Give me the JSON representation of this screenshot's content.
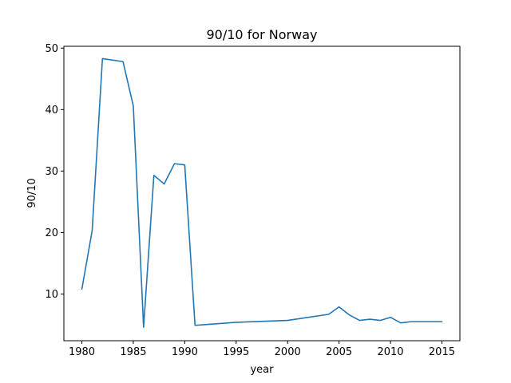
{
  "chart_data": {
    "type": "line",
    "title": "90/10 for Norway",
    "xlabel": "year",
    "ylabel": "90/10",
    "xlim": [
      1978.25,
      2016.75
    ],
    "ylim": [
      2.4,
      50.3
    ],
    "xticks": [
      1980,
      1985,
      1990,
      1995,
      2000,
      2005,
      2010,
      2015
    ],
    "yticks": [
      10,
      20,
      30,
      40,
      50
    ],
    "grid": false,
    "series": [
      {
        "color": "#1f77b4",
        "x": [
          1980,
          1981,
          1982,
          1984,
          1985,
          1986,
          1987,
          1988,
          1989,
          1990,
          1991,
          1995,
          2000,
          2004,
          2005,
          2006,
          2007,
          2008,
          2009,
          2010,
          2011,
          2012,
          2015
        ],
        "y": [
          10.8,
          20.3,
          48.3,
          47.8,
          40.6,
          4.6,
          29.3,
          27.9,
          31.2,
          31.0,
          4.9,
          5.4,
          5.7,
          6.7,
          7.9,
          6.6,
          5.7,
          5.9,
          5.7,
          6.2,
          5.3,
          5.5,
          5.5
        ]
      }
    ]
  }
}
